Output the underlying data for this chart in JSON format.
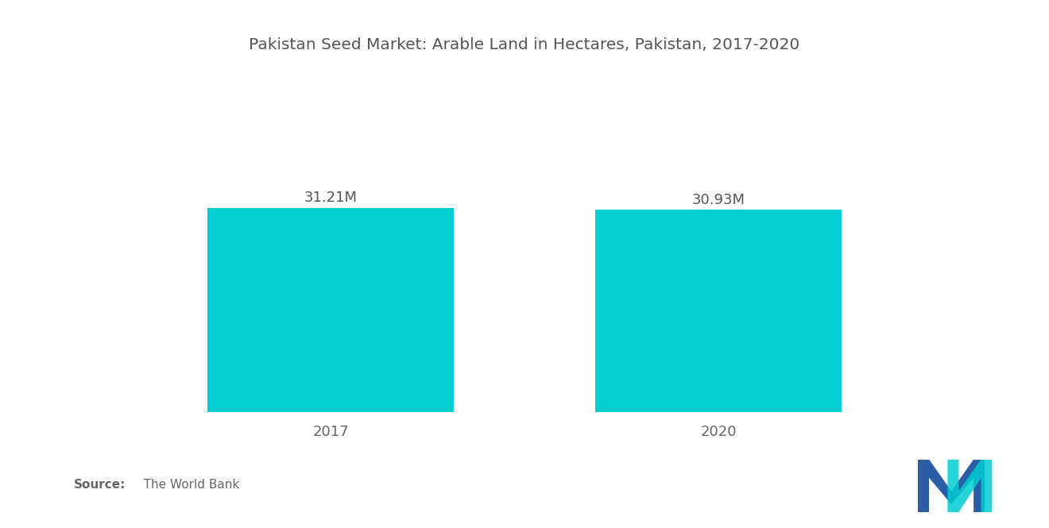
{
  "title": "Pakistan Seed Market: Arable Land in Hectares, Pakistan, 2017-2020",
  "categories": [
    "2017",
    "2020"
  ],
  "values": [
    31.21,
    30.93
  ],
  "labels": [
    "31.21M",
    "30.93M"
  ],
  "bar_color": "#00CED1",
  "background_color": "#ffffff",
  "title_fontsize": 14.5,
  "label_fontsize": 13,
  "tick_fontsize": 13,
  "source_bold": "Source:",
  "source_rest": "   The World Bank",
  "ylim": [
    0,
    42
  ],
  "bar_width": 0.28,
  "x_positions": [
    0.28,
    0.72
  ],
  "xlim": [
    0.0,
    1.0
  ],
  "title_color": "#555555",
  "tick_color": "#666666",
  "label_color": "#555555",
  "source_color": "#666666",
  "logo_blue": "#2B5EA7",
  "logo_teal": "#00CED1"
}
